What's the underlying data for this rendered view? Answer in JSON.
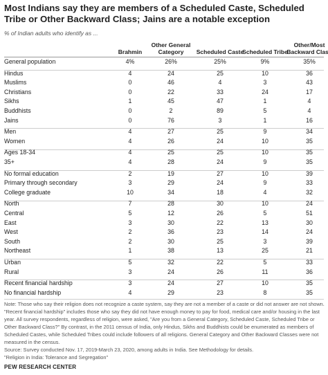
{
  "header": {
    "title": "Most Indians say they are members of a Scheduled Caste, Scheduled Tribe or Other Backward Class; Jains are a notable exception",
    "subtitle": "% of Indian adults who identify as ..."
  },
  "table": {
    "columns": [
      "Brahmin",
      "Other General Category",
      "Scheduled Caste",
      "Scheduled Tribe",
      "Other/Most Backward Class"
    ],
    "groups": [
      {
        "rows": [
          {
            "label": "General population",
            "cells": [
              "4%",
              "26%",
              "25%",
              "9%",
              "35%"
            ]
          }
        ]
      },
      {
        "rows": [
          {
            "label": "Hindus",
            "cells": [
              "4",
              "24",
              "25",
              "10",
              "36"
            ]
          },
          {
            "label": "Muslims",
            "cells": [
              "0",
              "46",
              "4",
              "3",
              "43"
            ]
          },
          {
            "label": "Christians",
            "cells": [
              "0",
              "22",
              "33",
              "24",
              "17"
            ]
          },
          {
            "label": "Sikhs",
            "cells": [
              "1",
              "45",
              "47",
              "1",
              "4"
            ]
          },
          {
            "label": "Buddhists",
            "cells": [
              "0",
              "2",
              "89",
              "5",
              "4"
            ]
          },
          {
            "label": "Jains",
            "cells": [
              "0",
              "76",
              "3",
              "1",
              "16"
            ]
          }
        ]
      },
      {
        "rows": [
          {
            "label": "Men",
            "cells": [
              "4",
              "27",
              "25",
              "9",
              "34"
            ]
          },
          {
            "label": "Women",
            "cells": [
              "4",
              "26",
              "24",
              "10",
              "35"
            ]
          }
        ]
      },
      {
        "rows": [
          {
            "label": "Ages 18-34",
            "cells": [
              "4",
              "25",
              "25",
              "10",
              "35"
            ]
          },
          {
            "label": "35+",
            "cells": [
              "4",
              "28",
              "24",
              "9",
              "35"
            ]
          }
        ]
      },
      {
        "rows": [
          {
            "label": "No formal education",
            "cells": [
              "2",
              "19",
              "27",
              "10",
              "39"
            ]
          },
          {
            "label": "Primary through secondary",
            "cells": [
              "3",
              "29",
              "24",
              "9",
              "33"
            ]
          },
          {
            "label": "College graduate",
            "cells": [
              "10",
              "34",
              "18",
              "4",
              "32"
            ]
          }
        ]
      },
      {
        "rows": [
          {
            "label": "North",
            "cells": [
              "7",
              "28",
              "30",
              "10",
              "24"
            ]
          },
          {
            "label": "Central",
            "cells": [
              "5",
              "12",
              "26",
              "5",
              "51"
            ]
          },
          {
            "label": "East",
            "cells": [
              "3",
              "30",
              "22",
              "13",
              "30"
            ]
          },
          {
            "label": "West",
            "cells": [
              "2",
              "36",
              "23",
              "14",
              "24"
            ]
          },
          {
            "label": "South",
            "cells": [
              "2",
              "30",
              "25",
              "3",
              "39"
            ]
          },
          {
            "label": "Northeast",
            "cells": [
              "1",
              "38",
              "13",
              "25",
              "21"
            ]
          }
        ]
      },
      {
        "rows": [
          {
            "label": "Urban",
            "cells": [
              "5",
              "32",
              "22",
              "5",
              "33"
            ]
          },
          {
            "label": "Rural",
            "cells": [
              "3",
              "24",
              "26",
              "11",
              "36"
            ]
          }
        ]
      },
      {
        "rows": [
          {
            "label": "Recent financial hardship",
            "cells": [
              "3",
              "24",
              "27",
              "10",
              "35"
            ]
          },
          {
            "label": "No financial hardship",
            "cells": [
              "4",
              "29",
              "23",
              "8",
              "35"
            ]
          }
        ]
      }
    ]
  },
  "notes": [
    "Note: Those who say their religion does not recognize a caste system, say they are not a member of a caste or did not answer are not shown.",
    "\"Recent financial hardship\" includes those who say they did not have enough money to pay for food, medical care and/or housing in the last",
    "year. All survey respondents, regardless of religion, were asked, \"Are you from a General Category, Scheduled Caste, Scheduled Tribe or",
    "Other Backward Class?\" By contrast, in the 2011 census of India, only Hindus, Sikhs and Buddhists could be enumerated as members of",
    "Scheduled Castes, while Scheduled Tribes could include followers of all religions. General Category and Other Backward Classes were not",
    "measured in the census.",
    "Source: Survey conducted Nov. 17, 2019-March 23, 2020, among adults in India. See Methodology for details.",
    "\"Religion in India: Tolerance and Segregation\""
  ],
  "footer": "PEW RESEARCH CENTER"
}
